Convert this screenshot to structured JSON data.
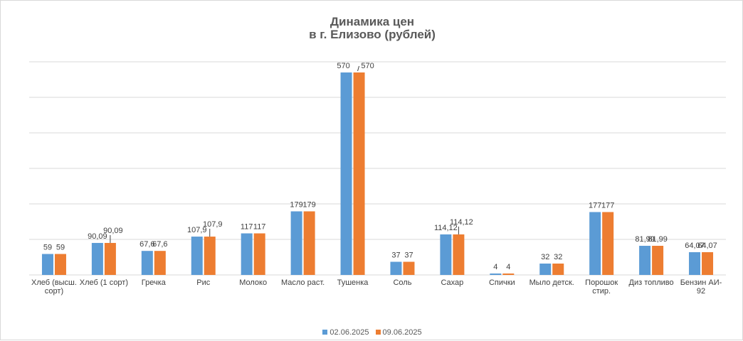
{
  "chart_data": {
    "type": "bar",
    "title_lines": [
      "Динамика цен",
      "в г. Елизово (рублей)"
    ],
    "categories": [
      [
        "Хлеб (высш.",
        "сорт)"
      ],
      [
        "Хлеб (1 сорт)"
      ],
      [
        "Гречка"
      ],
      [
        "Рис"
      ],
      [
        "Молоко"
      ],
      [
        "Масло раст."
      ],
      [
        "Тушенка"
      ],
      [
        "Соль"
      ],
      [
        "Сахар"
      ],
      [
        "Спички"
      ],
      [
        "Мыло детск."
      ],
      [
        "Порошок",
        "стир."
      ],
      [
        "Диз топливо"
      ],
      [
        "Бензин АИ-",
        "92"
      ]
    ],
    "series": [
      {
        "name": "02.06.2025",
        "color": "#5B9BD5",
        "values": [
          59,
          90.09,
          67.6,
          107.9,
          117,
          179,
          570,
          37,
          114.12,
          4,
          32,
          177,
          81.99,
          64.07
        ],
        "labels": [
          "59",
          "90,09",
          "67,6",
          "107,9",
          "117",
          "179",
          "570",
          "37",
          "114,12",
          "4",
          "32",
          "177",
          "81,99",
          "64,07"
        ]
      },
      {
        "name": "09.06.2025",
        "color": "#ED7D31",
        "values": [
          59,
          90.09,
          67.6,
          107.9,
          117,
          179,
          570,
          37,
          114.12,
          4,
          32,
          177,
          81.99,
          64.07
        ],
        "labels": [
          "59",
          "90,09",
          "67,6",
          "107,9",
          "117",
          "179",
          "570",
          "37",
          "114,12",
          "4",
          "32",
          "177",
          "81,99",
          "64,07"
        ]
      }
    ],
    "ylim": [
      0,
      600
    ],
    "grid": true,
    "legend_position": "bottom"
  }
}
